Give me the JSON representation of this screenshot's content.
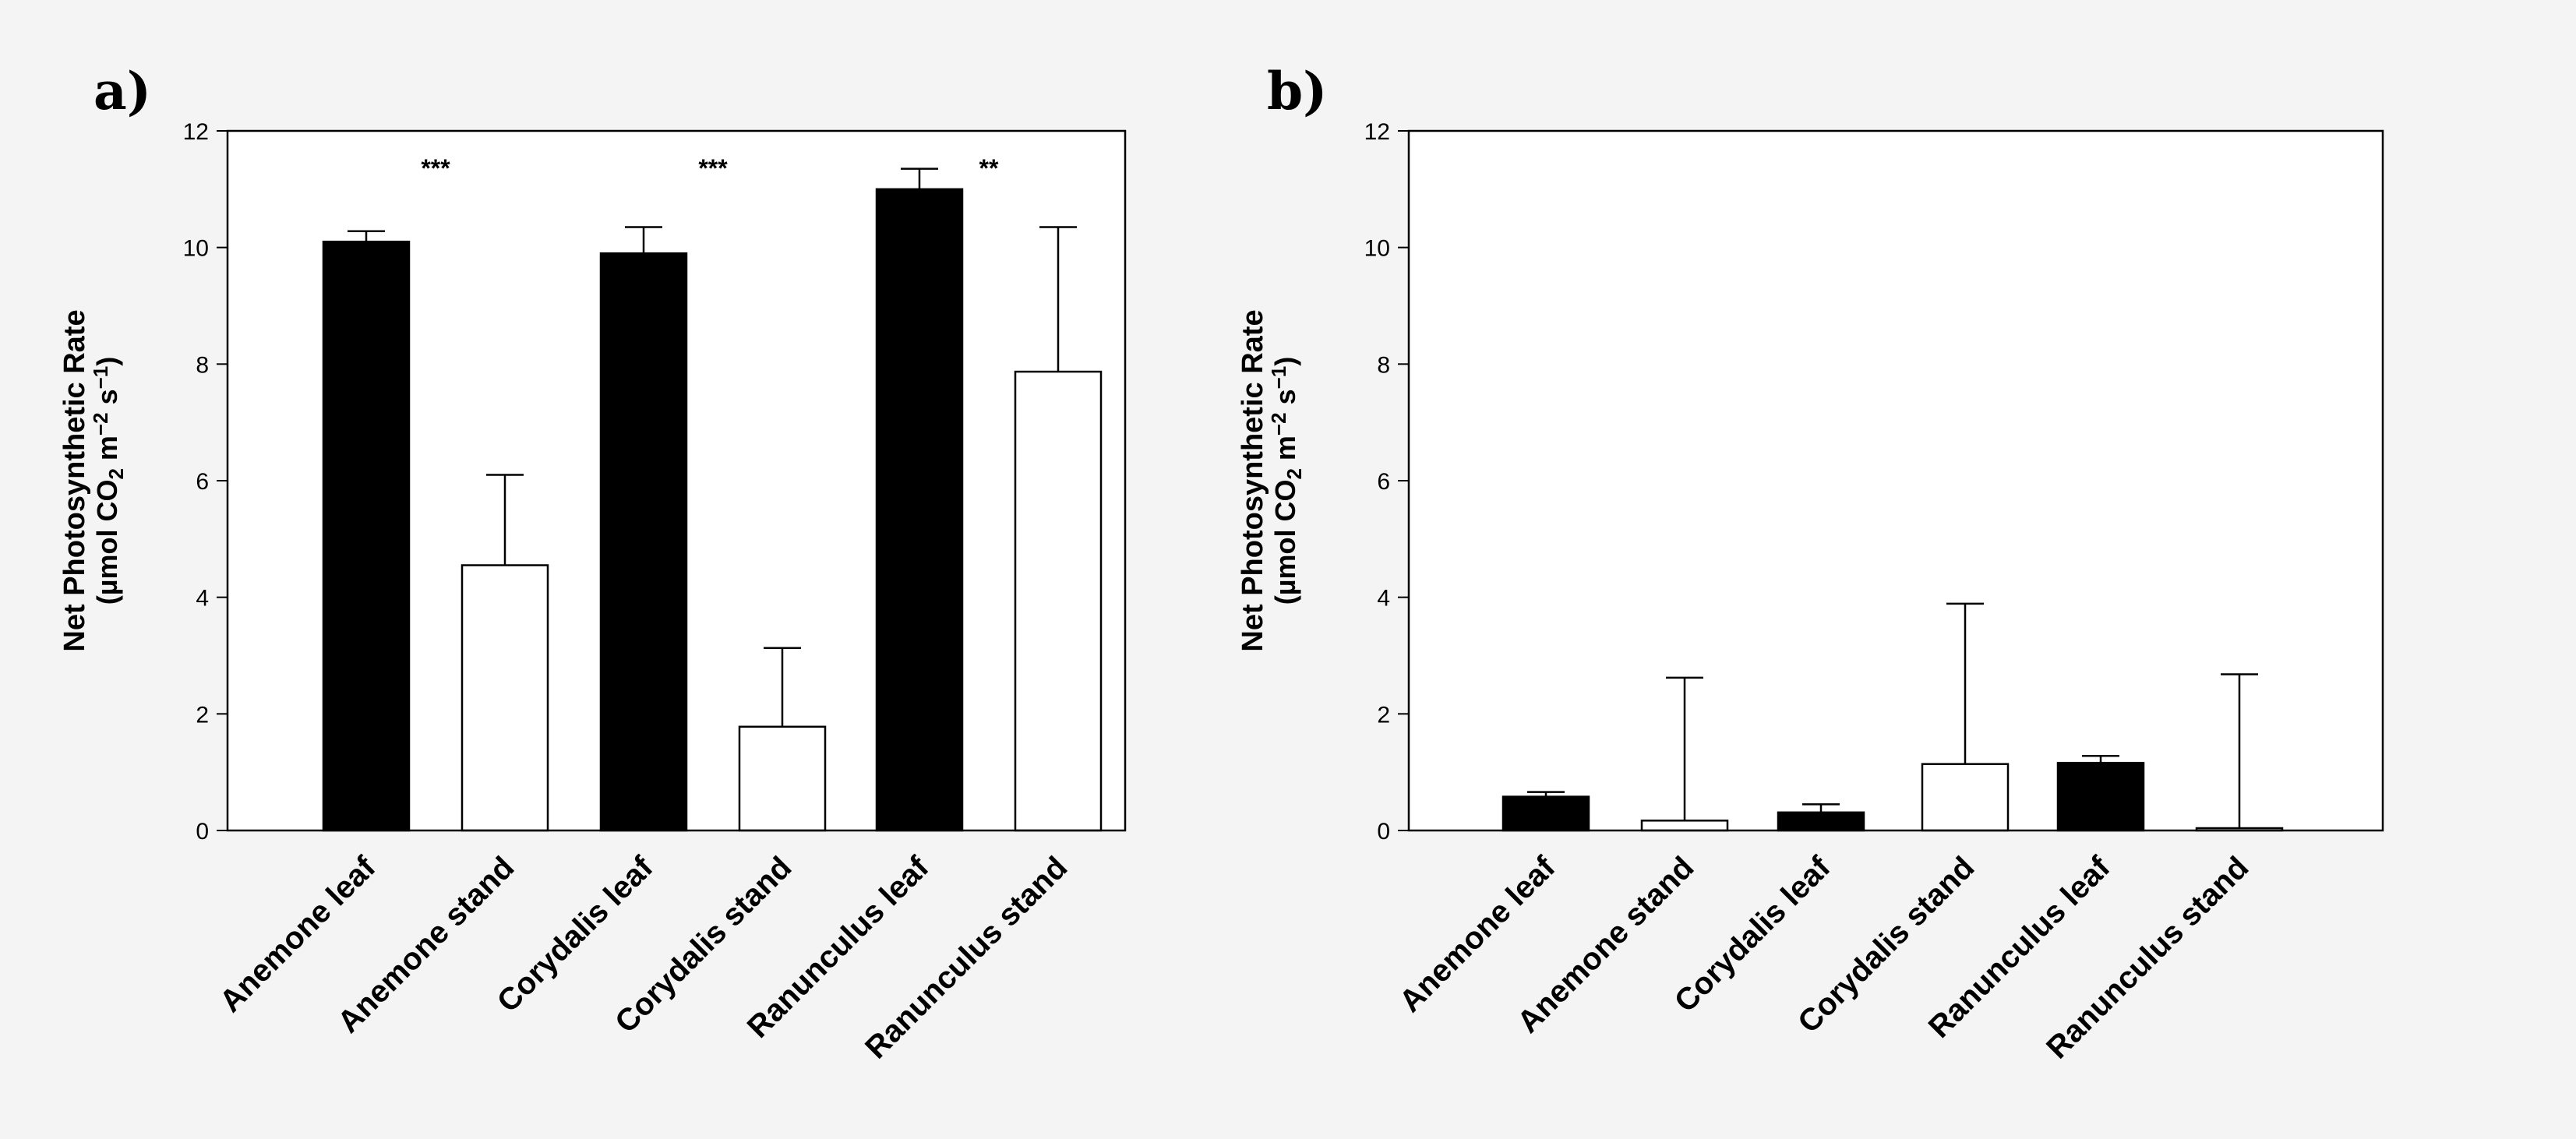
{
  "chart_data": [
    {
      "type": "bar",
      "panel_label": "a)",
      "ylabel_line1": "Net Photosynthetic Rate",
      "ylabel_unit": {
        "prefix": "(µmol CO",
        "sub1": "2",
        "mid": " m",
        "sup1": "−2",
        "mid2": " s",
        "sup2": "−1",
        "suffix": ")"
      },
      "ylim": [
        0,
        12
      ],
      "yticks": [
        "0",
        "2",
        "4",
        "6",
        "8",
        "10",
        "12"
      ],
      "categories": [
        "Anemone leaf",
        "Anemone stand",
        "Corydalis leaf",
        "Corydalis stand",
        "Ranunculus leaf",
        "Ranunculus stand"
      ],
      "values": [
        10.1,
        4.55,
        9.9,
        1.78,
        11.0,
        7.87
      ],
      "errors": [
        0.18,
        1.55,
        0.45,
        1.35,
        0.35,
        2.48
      ],
      "fills": [
        "#000000",
        "#ffffff",
        "#000000",
        "#ffffff",
        "#000000",
        "#ffffff"
      ],
      "significance": [
        {
          "label": "***",
          "between": [
            0,
            1
          ],
          "y": 11.4
        },
        {
          "label": "***",
          "between": [
            2,
            3
          ],
          "y": 11.4
        },
        {
          "label": "**",
          "between": [
            4,
            5
          ],
          "y": 11.4
        }
      ]
    },
    {
      "type": "bar",
      "panel_label": "b)",
      "ylabel_line1": "Net Photosynthetic Rate",
      "ylabel_unit": {
        "prefix": "(µmol CO",
        "sub1": "2",
        "mid": " m",
        "sup1": "−2",
        "mid2": " s",
        "sup2": "−1",
        "suffix": ")"
      },
      "ylim": [
        0,
        12
      ],
      "yticks": [
        "0",
        "2",
        "4",
        "6",
        "8",
        "10",
        "12"
      ],
      "categories": [
        "Anemone leaf",
        "Anemone stand",
        "Corydalis leaf",
        "Corydalis stand",
        "Ranunculus leaf",
        "Ranunculus stand"
      ],
      "values": [
        0.58,
        0.17,
        0.31,
        1.14,
        1.16,
        0.04
      ],
      "errors": [
        0.08,
        2.45,
        0.14,
        2.75,
        0.12,
        2.64
      ],
      "fills": [
        "#000000",
        "#ffffff",
        "#000000",
        "#ffffff",
        "#000000",
        "#ffffff"
      ],
      "significance": []
    }
  ],
  "colors": {
    "background": "#f4f4f4",
    "plot_bg": "#ffffff",
    "ink": "#000000"
  }
}
